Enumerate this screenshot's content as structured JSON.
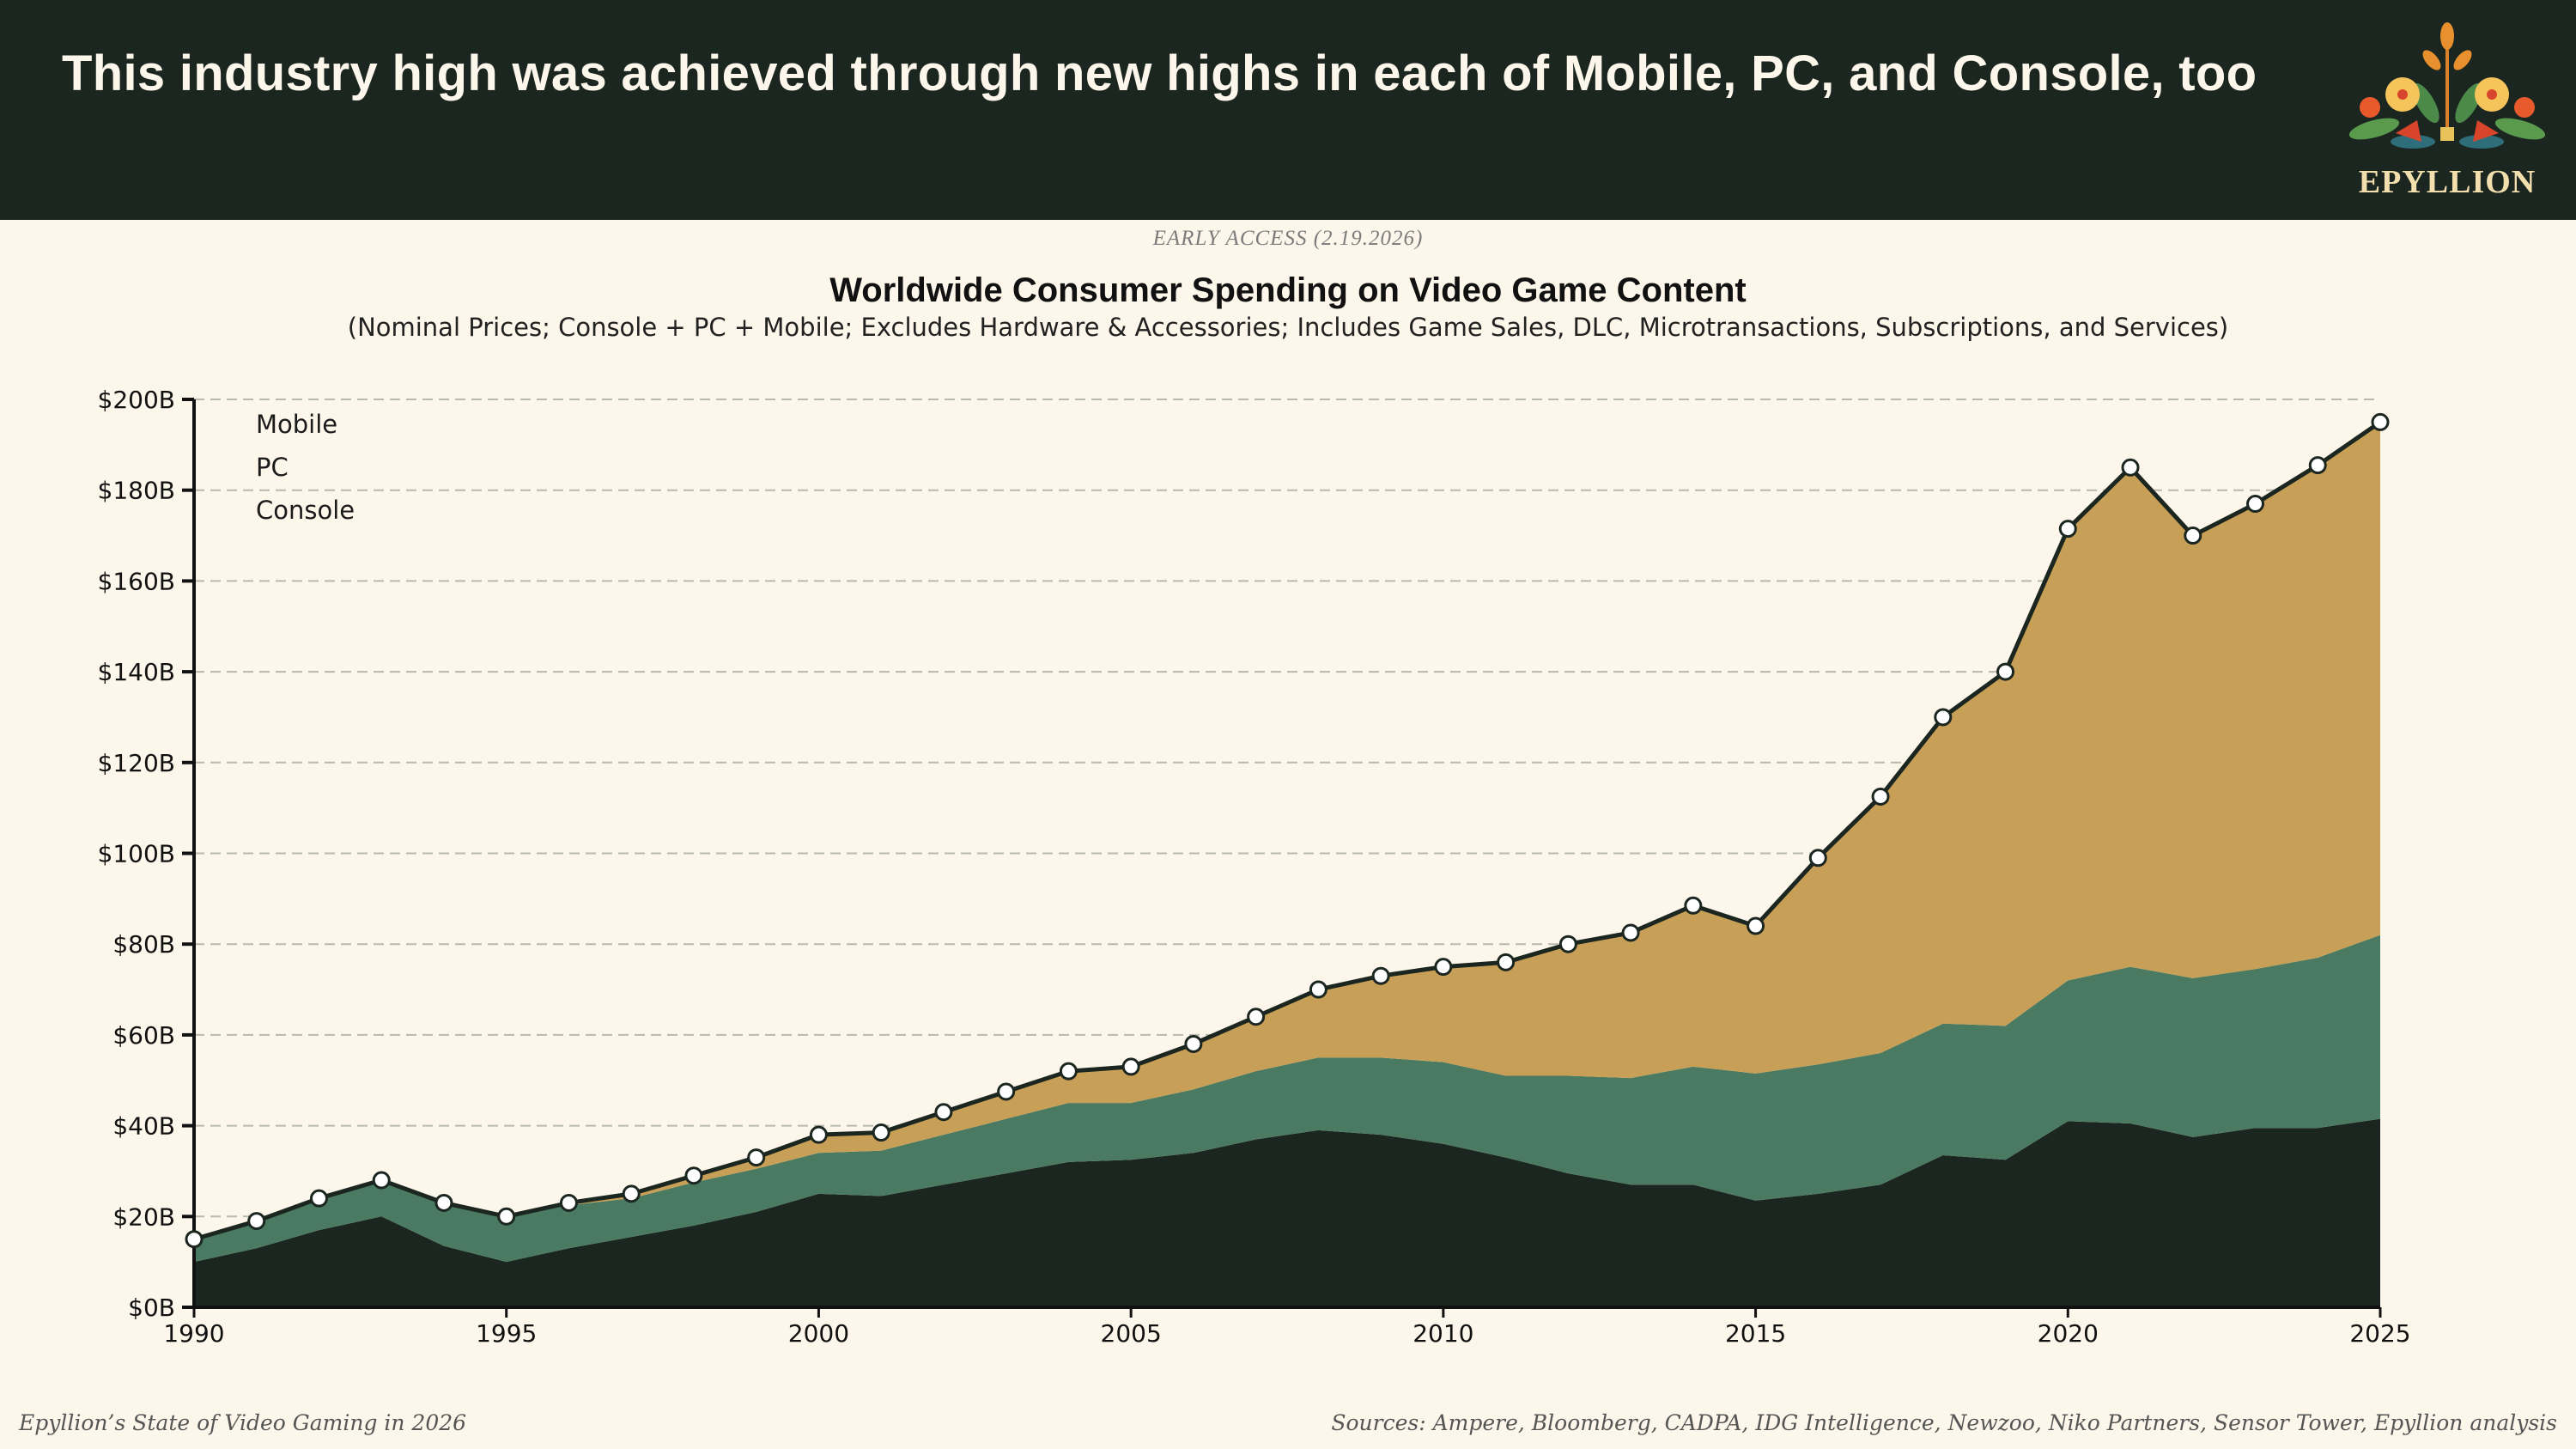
{
  "header": {
    "headline": "This industry high was achieved through new highs in each of Mobile, PC, and Console, too",
    "logo_text": "EPYLLION",
    "background": "#1b2620"
  },
  "badge": "EARLY ACCESS (2.19.2026)",
  "footer": {
    "left": "Epyllion’s State of Video Gaming in 2026",
    "right": "Sources: Ampere, Bloomberg, CADPA, IDG Intelligence, Newzoo, Niko Partners, Sensor Tower, Epyllion analysis"
  },
  "chart_data": {
    "type": "area",
    "stacked": true,
    "title": "Worldwide Consumer Spending on Video Game Content",
    "subtitle": "(Nominal Prices; Console + PC + Mobile; Excludes Hardware & Accessories; Includes Game Sales, DLC, Microtransactions, Subscriptions, and Services)",
    "xlabel": "",
    "ylabel": "",
    "x": [
      1990,
      1991,
      1992,
      1993,
      1994,
      1995,
      1996,
      1997,
      1998,
      1999,
      2000,
      2001,
      2002,
      2003,
      2004,
      2005,
      2006,
      2007,
      2008,
      2009,
      2010,
      2011,
      2012,
      2013,
      2014,
      2015,
      2016,
      2017,
      2018,
      2019,
      2020,
      2021,
      2022,
      2023,
      2024,
      2025
    ],
    "xticks": [
      "1990",
      "1995",
      "2000",
      "2005",
      "2010",
      "2015",
      "2020",
      "2025"
    ],
    "xlim": [
      1990,
      2025
    ],
    "ylim": [
      0,
      200
    ],
    "yticks": [
      "$0B",
      "$20B",
      "$40B",
      "$60B",
      "$80B",
      "$100B",
      "$120B",
      "$140B",
      "$160B",
      "$180B",
      "$200B"
    ],
    "grid": "horizontal dashed",
    "legend_placement": "top-left",
    "total_markers": true,
    "series": [
      {
        "name": "Console",
        "color": "#1b2620",
        "values": [
          10,
          13,
          17,
          20,
          13.5,
          10,
          13,
          15.5,
          18,
          21,
          25,
          24.5,
          27,
          29.5,
          32,
          32.5,
          34,
          37,
          39,
          38,
          36,
          33,
          29.5,
          27,
          27,
          23.5,
          25,
          27,
          33.5,
          32.5,
          41,
          40.5,
          37.5,
          39.5,
          39.5,
          41.5
        ]
      },
      {
        "name": "PC",
        "color": "#4a7a62",
        "values": [
          5,
          6,
          7,
          8,
          9.5,
          10,
          9.5,
          8.5,
          9.5,
          9.5,
          9,
          10,
          11,
          12,
          13,
          12.5,
          14,
          15,
          16,
          17,
          18,
          18,
          21.5,
          23.5,
          26,
          28,
          28.5,
          29,
          29,
          29.5,
          31,
          34.5,
          35,
          35,
          37.5,
          40.5
        ]
      },
      {
        "name": "Mobile",
        "color": "#c89f56",
        "values": [
          0,
          0,
          0,
          0,
          0,
          0,
          0.5,
          1,
          1.5,
          2.5,
          4,
          4,
          5,
          6,
          7,
          8,
          10,
          12,
          15,
          18,
          21,
          25,
          29,
          32,
          35.5,
          32.5,
          45.5,
          56.5,
          67.5,
          78,
          99.5,
          110,
          97.5,
          102.5,
          108.5,
          113
        ]
      }
    ]
  }
}
